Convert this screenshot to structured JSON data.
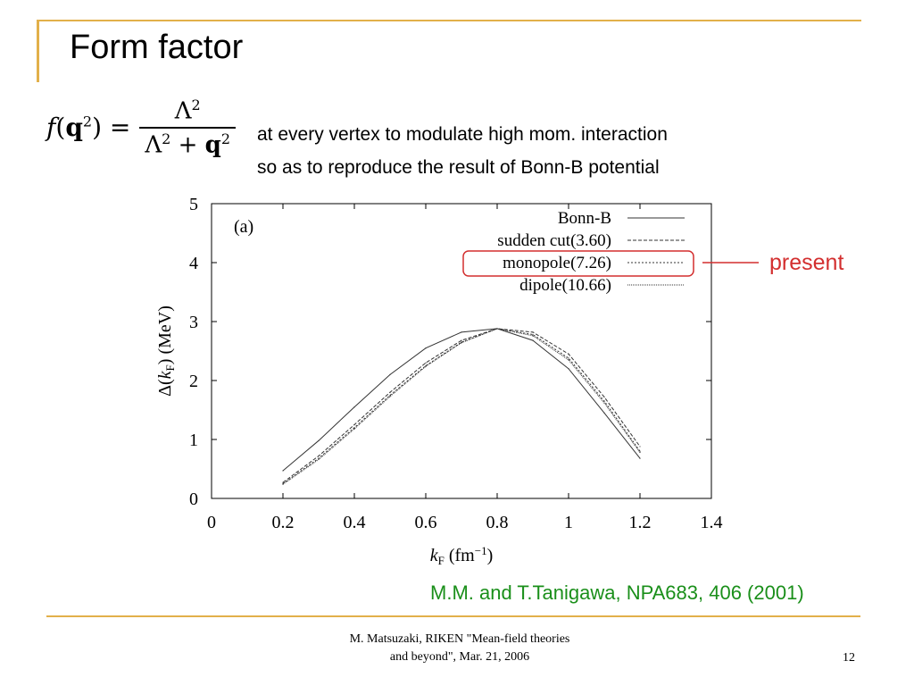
{
  "slide": {
    "title": "Form factor",
    "formula": {
      "lhs_f": "f",
      "lhs_open": "(",
      "lhs_q": "q",
      "lhs_sup": "2",
      "lhs_close": ") =",
      "num_base": "Λ",
      "num_sup": "2",
      "den_base": "Λ",
      "den_sup": "2",
      "den_plus": " + ",
      "den_q": "q",
      "den_q_sup": "2"
    },
    "desc_line1": "at every vertex to modulate high mom. interaction",
    "desc_line2": "so as to reproduce the result of Bonn-B potential",
    "present_label": "present",
    "reference": "M.M. and T.Tanigawa, NPA683, 406 (2001)",
    "footer_line1": "M. Matsuzaki, RIKEN \"Mean-field theories",
    "footer_line2": "and beyond\", Mar. 21, 2006",
    "page_number": "12"
  },
  "colors": {
    "accent": "#e2b04a",
    "highlight": "#d32f2f",
    "reference": "#1a8f1a"
  },
  "chart_data": {
    "type": "line",
    "panel_label": "(a)",
    "xlabel": {
      "italic": "k",
      "sub": "F",
      "rest": " (fm",
      "sup": "−1",
      "close": ")"
    },
    "ylabel": {
      "delta": "Δ(",
      "italic": "k",
      "sub": "F",
      "rest": ") (MeV)"
    },
    "xlim": [
      0,
      1.4
    ],
    "ylim": [
      0,
      5
    ],
    "xticks": [
      0,
      0.2,
      0.4,
      0.6,
      0.8,
      1,
      1.2,
      1.4
    ],
    "xtick_labels": [
      "0",
      "0.2",
      "0.4",
      "0.6",
      "0.8",
      "1",
      "1.2",
      "1.4"
    ],
    "yticks": [
      0,
      1,
      2,
      3,
      4,
      5
    ],
    "ytick_labels": [
      "0",
      "1",
      "2",
      "3",
      "4",
      "5"
    ],
    "x": [
      0.2,
      0.3,
      0.4,
      0.5,
      0.6,
      0.7,
      0.8,
      0.9,
      1.0,
      1.1,
      1.2
    ],
    "series": [
      {
        "name": "Bonn-B",
        "style": "solid",
        "values": [
          0.47,
          0.98,
          1.55,
          2.1,
          2.55,
          2.82,
          2.88,
          2.68,
          2.2,
          1.45,
          0.68
        ]
      },
      {
        "name": "sudden cut(3.60)",
        "style": "dashed",
        "values": [
          0.27,
          0.72,
          1.25,
          1.8,
          2.3,
          2.68,
          2.88,
          2.82,
          2.45,
          1.72,
          0.88
        ]
      },
      {
        "name": "monopole(7.26)",
        "style": "dotted",
        "values": [
          0.25,
          0.68,
          1.2,
          1.75,
          2.25,
          2.65,
          2.88,
          2.78,
          2.38,
          1.65,
          0.8
        ]
      },
      {
        "name": "dipole(10.66)",
        "style": "dense-dotted",
        "values": [
          0.24,
          0.66,
          1.18,
          1.73,
          2.24,
          2.64,
          2.88,
          2.76,
          2.35,
          1.62,
          0.78
        ]
      }
    ],
    "highlighted_series": "monopole(7.26)",
    "legend_position": "top-right",
    "grid": false
  }
}
